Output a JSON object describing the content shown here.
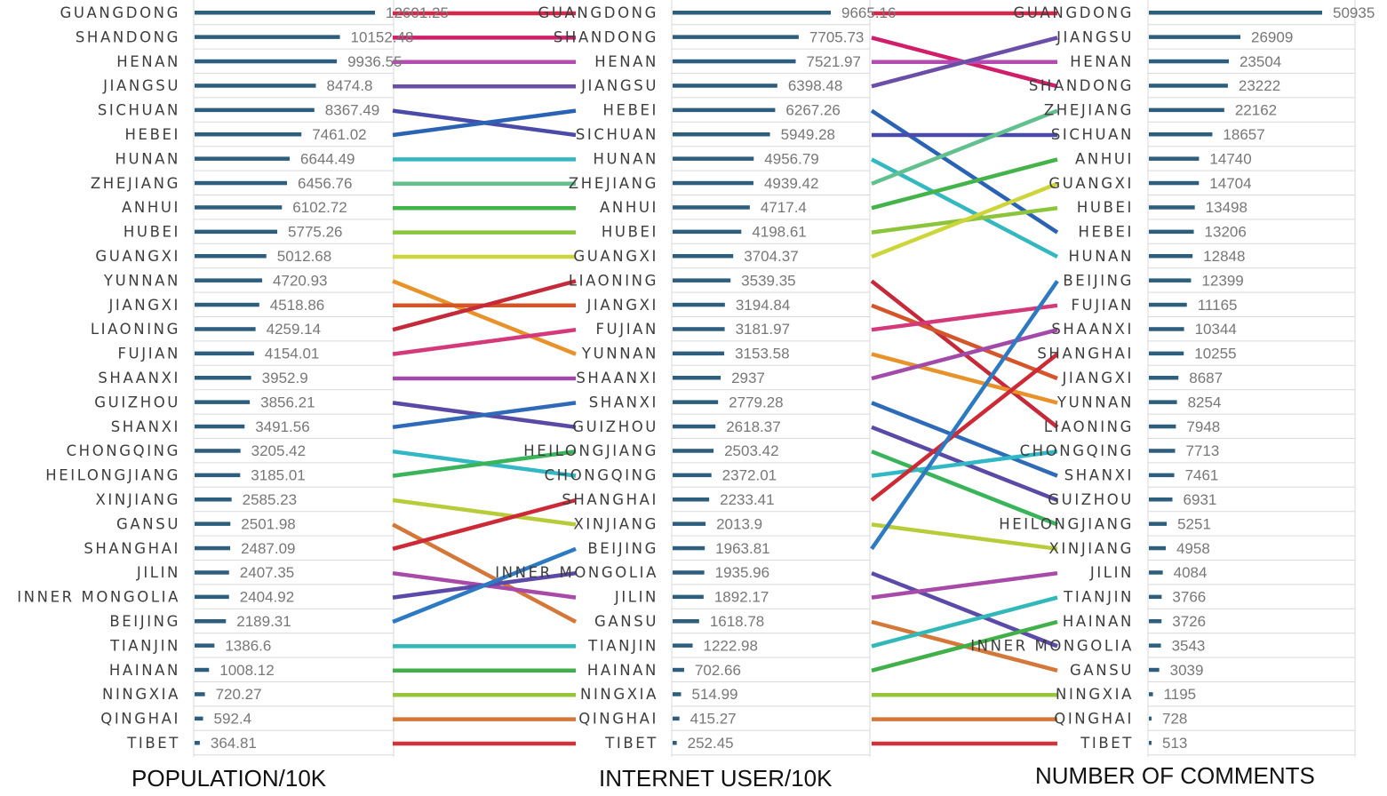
{
  "chart_data": [
    {
      "type": "bar",
      "xlabel": "POPULATION/10K",
      "xlim": [
        0,
        12601.25
      ],
      "categories": [
        "GUANGDONG",
        "SHANDONG",
        "HENAN",
        "JIANGSU",
        "SICHUAN",
        "HEBEI",
        "HUNAN",
        "ZHEJIANG",
        "ANHUI",
        "HUBEI",
        "GUANGXI",
        "YUNNAN",
        "JIANGXI",
        "LIAONING",
        "FUJIAN",
        "SHAANXI",
        "GUIZHOU",
        "SHANXI",
        "CHONGQING",
        "HEILONGJIANG",
        "XINJIANG",
        "GANSU",
        "SHANGHAI",
        "JILIN",
        "INNER MONGOLIA",
        "BEIJING",
        "TIANJIN",
        "HAINAN",
        "NINGXIA",
        "QINGHAI",
        "TIBET"
      ],
      "values": [
        12601.25,
        10152.48,
        9936.55,
        8474.8,
        8367.49,
        7461.02,
        6644.49,
        6456.76,
        6102.72,
        5775.26,
        5012.68,
        4720.93,
        4518.86,
        4259.14,
        4154.01,
        3952.9,
        3856.21,
        3491.56,
        3205.42,
        3185.01,
        2585.23,
        2501.98,
        2487.09,
        2407.35,
        2404.92,
        2189.31,
        1386.6,
        1008.12,
        720.27,
        592.4,
        364.81
      ]
    },
    {
      "type": "bar",
      "xlabel": "INTERNET USER/10K",
      "xlim": [
        0,
        9665.16
      ],
      "categories": [
        "GUANGDONG",
        "SHANDONG",
        "HENAN",
        "JIANGSU",
        "HEBEI",
        "SICHUAN",
        "HUNAN",
        "ZHEJIANG",
        "ANHUI",
        "HUBEI",
        "GUANGXI",
        "LIAONING",
        "JIANGXI",
        "FUJIAN",
        "YUNNAN",
        "SHAANXI",
        "SHANXI",
        "GUIZHOU",
        "HEILONGJIANG",
        "CHONGQING",
        "SHANGHAI",
        "XINJIANG",
        "BEIJING",
        "INNER MONGOLIA",
        "JILIN",
        "GANSU",
        "TIANJIN",
        "HAINAN",
        "NINGXIA",
        "QINGHAI",
        "TIBET"
      ],
      "values": [
        9665.16,
        7705.73,
        7521.97,
        6398.48,
        6267.26,
        5949.28,
        4956.79,
        4939.42,
        4717.4,
        4198.61,
        3704.37,
        3539.35,
        3194.84,
        3181.97,
        3153.58,
        2937.0,
        2779.28,
        2618.37,
        2503.42,
        2372.01,
        2233.41,
        2013.9,
        1963.81,
        1935.96,
        1892.17,
        1618.78,
        1222.98,
        702.66,
        514.99,
        415.27,
        252.45
      ]
    },
    {
      "type": "bar",
      "xlabel": "NUMBER OF COMMENTS",
      "xlim": [
        0,
        50935
      ],
      "categories": [
        "GUANGDONG",
        "JIANGSU",
        "HENAN",
        "SHANDONG",
        "ZHEJIANG",
        "SICHUAN",
        "ANHUI",
        "GUANGXI",
        "HUBEI",
        "HEBEI",
        "HUNAN",
        "BEIJING",
        "FUJIAN",
        "SHAANXI",
        "SHANGHAI",
        "JIANGXI",
        "YUNNAN",
        "LIAONING",
        "CHONGQING",
        "SHANXI",
        "GUIZHOU",
        "HEILONGJIANG",
        "XINJIANG",
        "JILIN",
        "TIANJIN",
        "HAINAN",
        "INNER MONGOLIA",
        "GANSU",
        "NINGXIA",
        "QINGHAI",
        "TIBET"
      ],
      "values": [
        50935,
        26909,
        23504,
        23222,
        22162,
        18657,
        14740,
        14704,
        13498,
        13206,
        12848,
        12399,
        11165,
        10344,
        10255,
        8687,
        8254,
        7948,
        7713,
        7461,
        6931,
        5251,
        4958,
        4084,
        3766,
        3726,
        3543,
        3039,
        1195,
        728,
        513
      ]
    }
  ],
  "colors": {
    "bar": "#2e5e7e",
    "GUANGDONG": "#d8264a",
    "SHANDONG": "#d01e6a",
    "HENAN": "#b44bb0",
    "JIANGSU": "#6a4ea8",
    "SICHUAN": "#4a4aa8",
    "HEBEI": "#2a62b4",
    "HUNAN": "#34b8c0",
    "ZHEJIANG": "#62bf8e",
    "ANHUI": "#44b44a",
    "HUBEI": "#8cc43c",
    "GUANGXI": "#ccd63a",
    "YUNNAN": "#e8922a",
    "JIANGXI": "#d4552a",
    "LIAONING": "#c42a3a",
    "FUJIAN": "#d43a7a",
    "SHAANXI": "#a24aaa",
    "GUIZHOU": "#5a4aa6",
    "SHANXI": "#2e6ab8",
    "CHONGQING": "#32b8c4",
    "HEILONGJIANG": "#3ab45a",
    "XINJIANG": "#b8cc3a",
    "GANSU": "#d4783a",
    "SHANGHAI": "#cc2a36",
    "JILIN": "#a84aa8",
    "INNER MONGOLIA": "#5c4aa8",
    "BEIJING": "#2e7ac2",
    "TIANJIN": "#32b8b8",
    "HAINAN": "#42b04a",
    "NINGXIA": "#96c43a",
    "QINGHAI": "#d4783a",
    "TIBET": "#d43238"
  }
}
